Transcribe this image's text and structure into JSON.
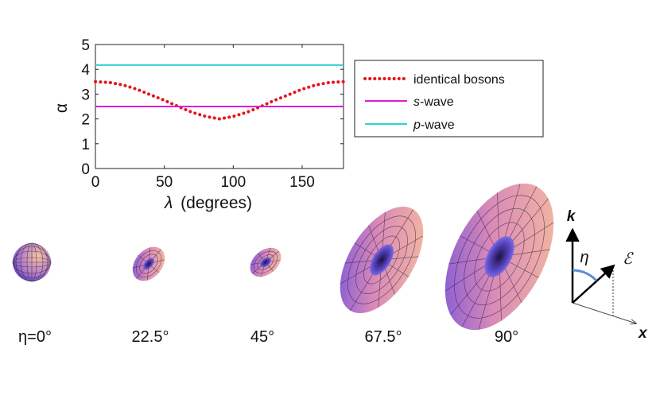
{
  "chart_data": {
    "type": "line",
    "title": "",
    "ylabel": "α",
    "xlabel_symbol": "λ",
    "xlabel_text": "(degrees)",
    "xlim": [
      0,
      180
    ],
    "ylim": [
      0,
      5
    ],
    "xticks": [
      0,
      50,
      100,
      150
    ],
    "yticks": [
      0,
      1,
      2,
      3,
      4,
      5
    ],
    "legend_position": "right",
    "series": [
      {
        "name": "identical bosons",
        "style": "dotted",
        "color": "#e8141b",
        "x": [
          0,
          10,
          20,
          30,
          40,
          50,
          60,
          70,
          80,
          90,
          100,
          110,
          120,
          130,
          140,
          150,
          160,
          170,
          180
        ],
        "y": [
          3.5,
          3.47,
          3.37,
          3.2,
          2.97,
          2.75,
          2.5,
          2.27,
          2.1,
          2.0,
          2.1,
          2.27,
          2.5,
          2.75,
          2.97,
          3.2,
          3.37,
          3.47,
          3.5
        ]
      },
      {
        "name_italic": "s",
        "name_rest": "-wave",
        "style": "solid",
        "color": "#e21bd6",
        "x": [
          0,
          180
        ],
        "y": [
          2.5,
          2.5
        ]
      },
      {
        "name_italic": "p",
        "name_rest": "-wave",
        "style": "solid",
        "color": "#2fd3d3",
        "x": [
          0,
          180
        ],
        "y": [
          4.17,
          4.17
        ]
      }
    ]
  },
  "shapes": {
    "captions": [
      "η=0°",
      "22.5°",
      "45°",
      "67.5°",
      "90°"
    ],
    "colors": {
      "warm": "#f6b58f",
      "cool": "#6d4de0",
      "mesh": "#3a2a2a"
    }
  },
  "diagram": {
    "k_label": "k",
    "eta_label": "η",
    "field_label": "ℰ",
    "x_label": "x",
    "arc_color": "#5a8fd6"
  }
}
